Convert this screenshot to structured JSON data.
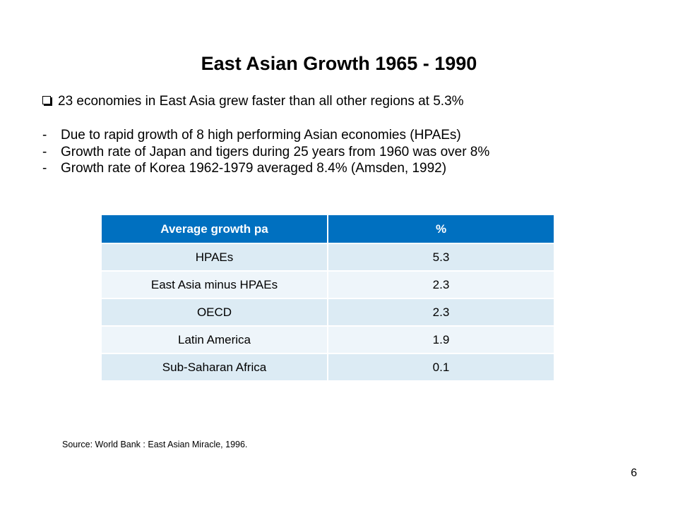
{
  "slide": {
    "title": "East Asian Growth 1965 - 1990",
    "bullet": "23 economies in East Asia grew faster than all other regions at 5.3%",
    "sub_items": [
      {
        "dash": "-",
        "text": "Due to rapid growth of 8 high performing Asian economies (HPAEs)"
      },
      {
        "dash": "-",
        "text": "Growth rate of Japan and tigers during 25 years from 1960 was over 8%"
      },
      {
        "dash": "-",
        "text": "Growth rate of Korea 1962-1979 averaged  8.4% (Amsden, 1992)"
      }
    ],
    "table": {
      "headers": [
        "Average growth pa",
        "%"
      ],
      "rows": [
        [
          "HPAEs",
          "5.3"
        ],
        [
          "East Asia minus HPAEs",
          "2.3"
        ],
        [
          "OECD",
          "2.3"
        ],
        [
          "Latin America",
          "1.9"
        ],
        [
          "Sub-Saharan Africa",
          "0.1"
        ]
      ]
    },
    "source": "Source: World Bank : East Asian Miracle, 1996.",
    "page_number": "6",
    "colors": {
      "header_bg": "#0070c0",
      "row_odd": "#dcebf4",
      "row_even": "#eef5fa"
    }
  }
}
